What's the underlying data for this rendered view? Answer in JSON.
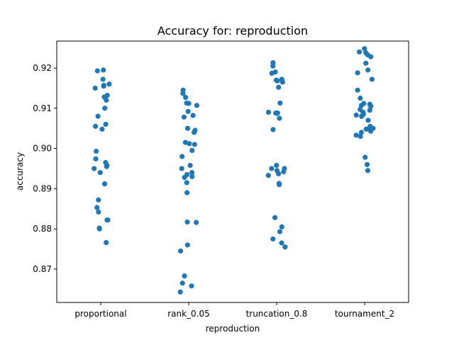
{
  "chart_data": {
    "type": "scatter",
    "title": "Accuracy for: reproduction",
    "xlabel": "reproduction",
    "ylabel": "accuracy",
    "ylim": [
      0.8617,
      0.9267
    ],
    "yticks": [
      0.87,
      0.88,
      0.89,
      0.9,
      0.91,
      0.92
    ],
    "ytick_labels": [
      "0.87",
      "0.88",
      "0.89",
      "0.90",
      "0.91",
      "0.92"
    ],
    "categories": [
      "proportional",
      "rank_0.05",
      "truncation_0.8",
      "tournament_2"
    ],
    "point_color": "#1f77b4",
    "grid": false,
    "series": [
      {
        "category": "proportional",
        "values": [
          0.9195,
          0.9193,
          0.9172,
          0.916,
          0.9157,
          0.9155,
          0.915,
          0.9132,
          0.9128,
          0.912,
          0.91,
          0.908,
          0.906,
          0.9055,
          0.9048,
          0.8993,
          0.8974,
          0.8965,
          0.8958,
          0.8955,
          0.895,
          0.894,
          0.8912,
          0.8872,
          0.8853,
          0.8842,
          0.8822,
          0.8822,
          0.8802,
          0.88,
          0.8766
        ]
      },
      {
        "category": "rank_0.05",
        "values": [
          0.9145,
          0.9137,
          0.9127,
          0.9113,
          0.9112,
          0.9107,
          0.9092,
          0.9082,
          0.9078,
          0.905,
          0.9045,
          0.904,
          0.9015,
          0.9012,
          0.901,
          0.8995,
          0.898,
          0.8958,
          0.895,
          0.894,
          0.8935,
          0.893,
          0.8928,
          0.8915,
          0.889,
          0.8817,
          0.8816,
          0.876,
          0.8745,
          0.8683,
          0.8665,
          0.8658,
          0.8643
        ]
      },
      {
        "category": "truncation_0.8",
        "values": [
          0.9213,
          0.9205,
          0.919,
          0.9187,
          0.9172,
          0.917,
          0.9168,
          0.9165,
          0.9152,
          0.9113,
          0.909,
          0.9088,
          0.9088,
          0.9087,
          0.9075,
          0.9047,
          0.8958,
          0.895,
          0.895,
          0.8945,
          0.8942,
          0.8937,
          0.8933,
          0.8913,
          0.891,
          0.8828,
          0.8805,
          0.8793,
          0.8775,
          0.8765,
          0.8755
        ]
      },
      {
        "category": "tournament_2",
        "values": [
          0.9248,
          0.924,
          0.9238,
          0.9233,
          0.9228,
          0.9212,
          0.9195,
          0.9188,
          0.9172,
          0.9145,
          0.9125,
          0.9112,
          0.911,
          0.9107,
          0.9105,
          0.9097,
          0.9095,
          0.909,
          0.9085,
          0.9083,
          0.908,
          0.907,
          0.9055,
          0.9052,
          0.905,
          0.9048,
          0.9043,
          0.904,
          0.9033,
          0.903,
          0.8978,
          0.896,
          0.8945
        ]
      }
    ]
  }
}
